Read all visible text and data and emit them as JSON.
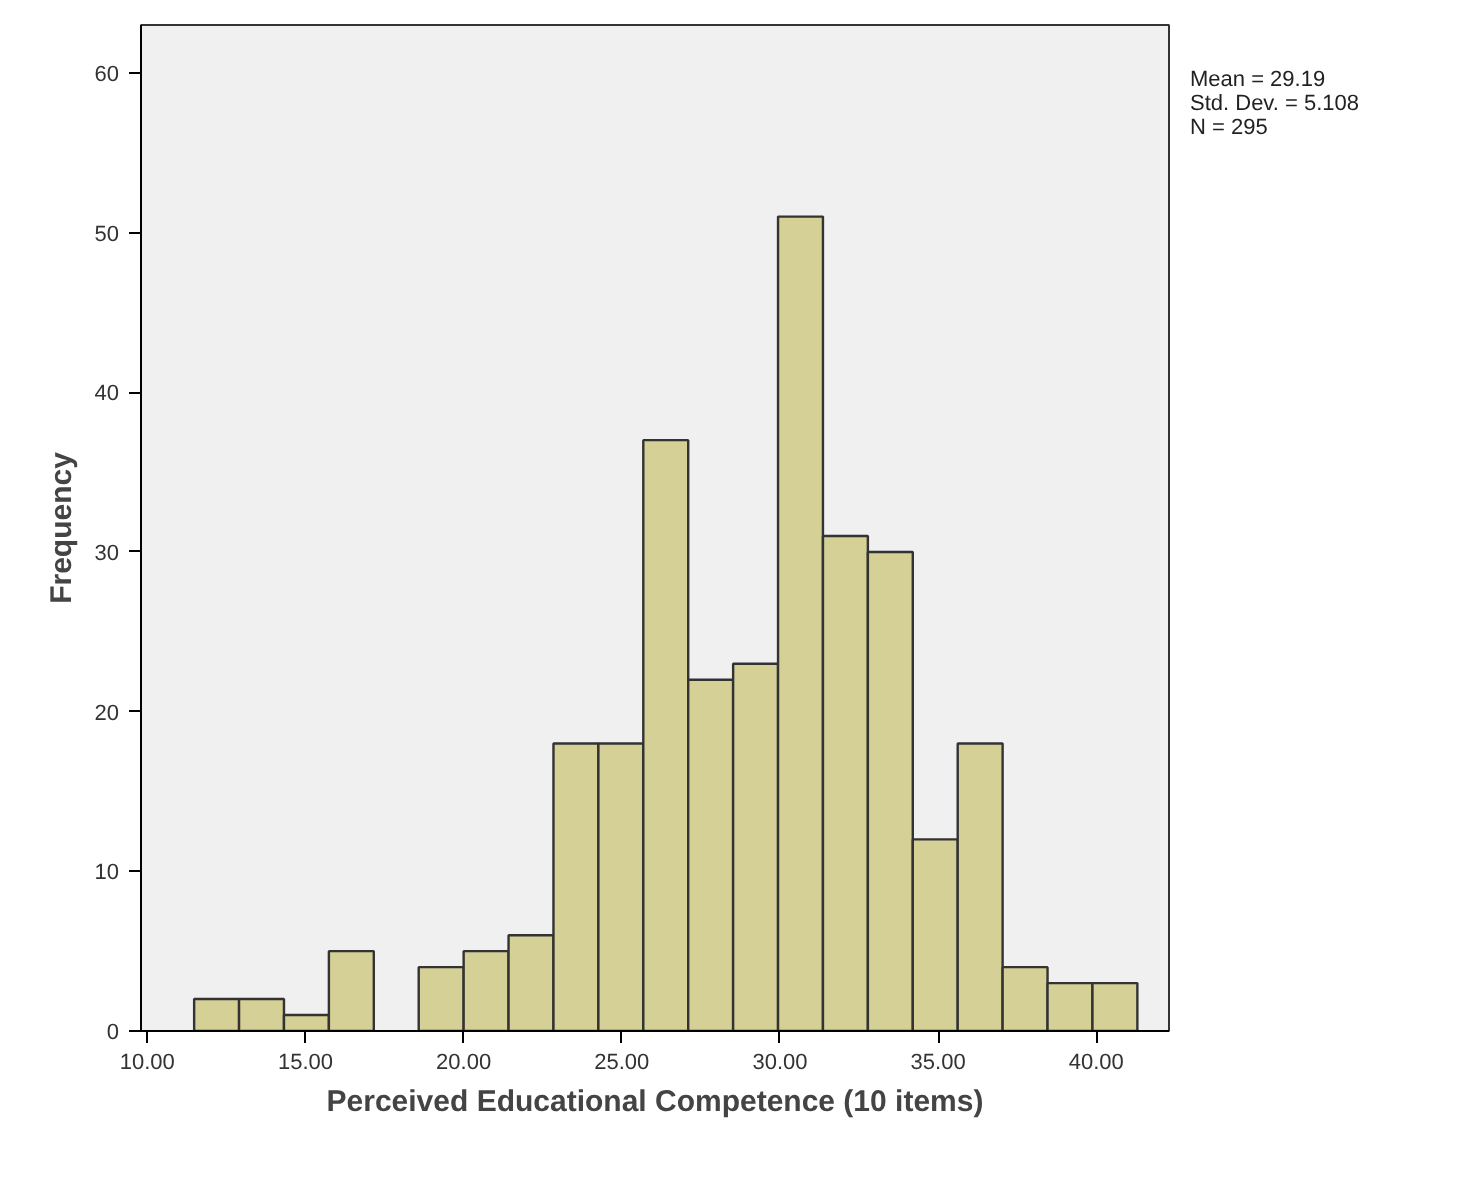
{
  "chart_data": {
    "type": "histogram",
    "xlabel": "Perceived Educational Competence (10 items)",
    "ylabel": "Frequency",
    "bins": [
      11.48,
      12.9,
      14.32,
      15.74,
      17.16,
      18.58,
      20.0,
      21.42,
      22.84,
      24.26,
      25.68,
      27.1,
      28.52,
      29.94,
      31.36,
      32.78,
      34.2,
      35.62,
      37.04,
      38.46,
      39.88,
      41.3
    ],
    "values": [
      2,
      2,
      1,
      5,
      0,
      4,
      5,
      6,
      18,
      18,
      37,
      22,
      23,
      51,
      31,
      30,
      12,
      18,
      4,
      3,
      3
    ],
    "color": "#d4d096",
    "xlim": [
      9.8,
      42.3
    ],
    "ylim": [
      0,
      63
    ],
    "xticks": [
      {
        "value": 10,
        "label": "10.00"
      },
      {
        "value": 15,
        "label": "15.00"
      },
      {
        "value": 20,
        "label": "20.00"
      },
      {
        "value": 25,
        "label": "25.00"
      },
      {
        "value": 30,
        "label": "30.00"
      },
      {
        "value": 35,
        "label": "35.00"
      },
      {
        "value": 40,
        "label": "40.00"
      }
    ],
    "yticks": [
      0,
      10,
      20,
      30,
      40,
      50,
      60
    ],
    "annotations": [
      "Mean = 29.19",
      "Std. Dev. = 5.108",
      "N = 295"
    ],
    "grid": false
  }
}
